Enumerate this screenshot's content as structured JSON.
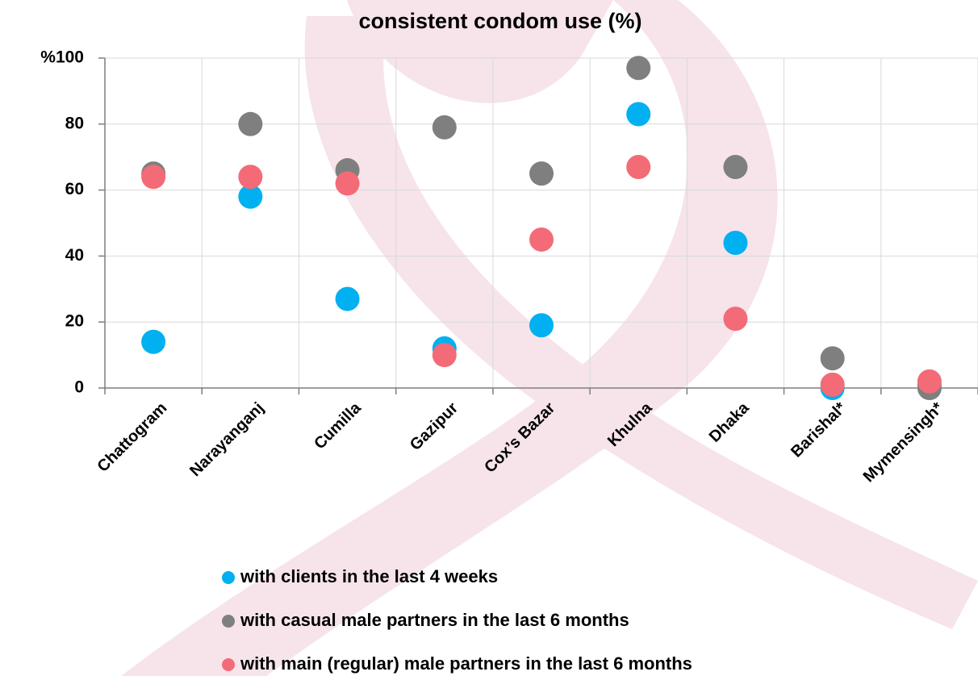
{
  "chart_data": {
    "type": "scatter",
    "title": "consistent condom use (%)",
    "categories": [
      "Chattogram",
      "Narayanganj",
      "Cumilla",
      "Gazipur",
      "Cox’s Bazar",
      "Khulna",
      "Dhaka",
      "Barishal*",
      "Mymensingh*"
    ],
    "series": [
      {
        "name": "with clients in the last 4 weeks",
        "color": "#00b0f0",
        "values": [
          14,
          58,
          27,
          12,
          19,
          83,
          44,
          0,
          1
        ]
      },
      {
        "name": "with casual male partners in the last 6 months",
        "color": "#7f7f7f",
        "values": [
          65,
          80,
          66,
          79,
          65,
          97,
          67,
          9,
          0
        ]
      },
      {
        "name": "with main (regular) male partners in the last 6 months",
        "color": "#f36b76",
        "values": [
          64,
          64,
          62,
          10,
          45,
          67,
          21,
          1,
          2
        ]
      }
    ],
    "ylim": [
      0,
      100
    ],
    "yticks": [
      0,
      20,
      40,
      60,
      80,
      {
        "value": 100,
        "label": "%100"
      }
    ],
    "grid": true
  }
}
